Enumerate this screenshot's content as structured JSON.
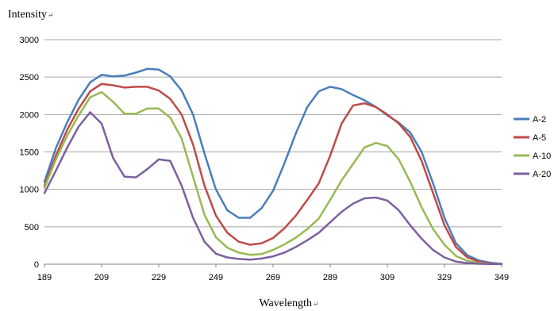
{
  "chart_data": {
    "type": "line",
    "title": "",
    "ylabel": "Intensity",
    "ylabel_mark": "↵",
    "xlabel": "Wavelength",
    "xlabel_mark": "↵",
    "xlim": [
      189,
      349
    ],
    "ylim": [
      0,
      3000
    ],
    "x_ticks": [
      189,
      209,
      229,
      249,
      269,
      289,
      309,
      329,
      349
    ],
    "y_ticks": [
      0,
      500,
      1000,
      1500,
      2000,
      2500,
      3000
    ],
    "grid": "horizontal",
    "legend_position": "right",
    "series": [
      {
        "name": "A-2",
        "color": "#4A7EBB",
        "x": [
          189,
          193,
          197,
          201,
          205,
          209,
          213,
          217,
          221,
          225,
          229,
          233,
          237,
          241,
          245,
          249,
          253,
          257,
          261,
          265,
          269,
          273,
          277,
          281,
          285,
          289,
          293,
          297,
          301,
          305,
          309,
          313,
          317,
          321,
          325,
          329,
          333,
          337,
          341,
          345,
          349
        ],
        "values": [
          1100,
          1550,
          1900,
          2200,
          2430,
          2530,
          2510,
          2520,
          2560,
          2610,
          2600,
          2510,
          2320,
          2000,
          1480,
          1000,
          720,
          620,
          620,
          750,
          980,
          1350,
          1750,
          2100,
          2310,
          2370,
          2340,
          2260,
          2190,
          2100,
          1990,
          1890,
          1760,
          1500,
          1080,
          620,
          280,
          120,
          50,
          20,
          5
        ]
      },
      {
        "name": "A-5",
        "color": "#BE4B48",
        "x": [
          189,
          193,
          197,
          201,
          205,
          209,
          213,
          217,
          221,
          225,
          229,
          233,
          237,
          241,
          245,
          249,
          253,
          257,
          261,
          265,
          269,
          273,
          277,
          281,
          285,
          289,
          293,
          297,
          301,
          305,
          309,
          313,
          317,
          321,
          325,
          329,
          333,
          337,
          341,
          345,
          349
        ],
        "values": [
          1050,
          1450,
          1800,
          2080,
          2310,
          2410,
          2390,
          2360,
          2370,
          2370,
          2320,
          2210,
          2000,
          1600,
          1050,
          650,
          420,
          300,
          260,
          280,
          350,
          480,
          650,
          860,
          1080,
          1450,
          1880,
          2120,
          2150,
          2100,
          2000,
          1880,
          1700,
          1380,
          950,
          520,
          230,
          90,
          35,
          10,
          3
        ]
      },
      {
        "name": "A-10",
        "color": "#98B954",
        "x": [
          189,
          193,
          197,
          201,
          205,
          209,
          213,
          217,
          221,
          225,
          229,
          233,
          237,
          241,
          245,
          249,
          253,
          257,
          261,
          265,
          269,
          273,
          277,
          281,
          285,
          289,
          293,
          297,
          301,
          305,
          309,
          313,
          317,
          321,
          325,
          329,
          333,
          337,
          341,
          345,
          349
        ],
        "values": [
          1020,
          1400,
          1720,
          1990,
          2230,
          2300,
          2170,
          2010,
          2010,
          2080,
          2080,
          1960,
          1680,
          1170,
          660,
          360,
          220,
          155,
          125,
          135,
          190,
          265,
          355,
          470,
          610,
          860,
          1120,
          1340,
          1560,
          1620,
          1580,
          1400,
          1100,
          760,
          470,
          260,
          110,
          45,
          15,
          5,
          2
        ]
      },
      {
        "name": "A-20",
        "color": "#7D5FA0",
        "x": [
          189,
          193,
          197,
          201,
          205,
          209,
          213,
          217,
          221,
          225,
          229,
          233,
          237,
          241,
          245,
          249,
          253,
          257,
          261,
          265,
          269,
          273,
          277,
          281,
          285,
          289,
          293,
          297,
          301,
          305,
          309,
          313,
          317,
          321,
          325,
          329,
          333,
          337,
          341,
          345,
          349
        ],
        "values": [
          950,
          1250,
          1560,
          1840,
          2030,
          1880,
          1420,
          1170,
          1160,
          1270,
          1400,
          1380,
          1050,
          620,
          300,
          140,
          90,
          70,
          60,
          75,
          105,
          155,
          230,
          320,
          420,
          560,
          700,
          810,
          880,
          890,
          850,
          720,
          520,
          340,
          190,
          90,
          35,
          15,
          5,
          2,
          1
        ]
      }
    ]
  }
}
